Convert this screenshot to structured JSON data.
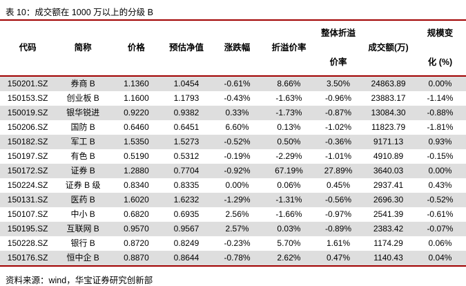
{
  "title": "表 10：成交额在 1000 万以上的分级 B",
  "table": {
    "columns": [
      {
        "label": "代码",
        "lines": [
          "代码"
        ]
      },
      {
        "label": "简称",
        "lines": [
          "简称"
        ]
      },
      {
        "label": "价格",
        "lines": [
          "价格"
        ]
      },
      {
        "label": "预估净值",
        "lines": [
          "预估净值"
        ]
      },
      {
        "label": "涨跌幅",
        "lines": [
          "涨跌幅"
        ]
      },
      {
        "label": "折溢价率",
        "lines": [
          "折溢价率"
        ]
      },
      {
        "label": "整体折溢价率",
        "lines": [
          "整体折溢",
          "价率"
        ]
      },
      {
        "label": "成交额(万)",
        "lines": [
          "成交额(万)"
        ]
      },
      {
        "label": "规模变化 (%)",
        "lines": [
          "规模变",
          "化 (%)"
        ]
      }
    ],
    "rows": [
      [
        "150201.SZ",
        "券商 B",
        "1.1360",
        "1.0454",
        "-0.61%",
        "8.66%",
        "3.50%",
        "24863.89",
        "0.00%"
      ],
      [
        "150153.SZ",
        "创业板 B",
        "1.1600",
        "1.1793",
        "-0.43%",
        "-1.63%",
        "-0.96%",
        "23883.17",
        "-1.14%"
      ],
      [
        "150019.SZ",
        "银华锐进",
        "0.9220",
        "0.9382",
        "0.33%",
        "-1.73%",
        "-0.87%",
        "13084.30",
        "-0.88%"
      ],
      [
        "150206.SZ",
        "国防 B",
        "0.6460",
        "0.6451",
        "6.60%",
        "0.13%",
        "-1.02%",
        "11823.79",
        "-1.81%"
      ],
      [
        "150182.SZ",
        "军工 B",
        "1.5350",
        "1.5273",
        "-0.52%",
        "0.50%",
        "-0.36%",
        "9171.13",
        "0.93%"
      ],
      [
        "150197.SZ",
        "有色 B",
        "0.5190",
        "0.5312",
        "-0.19%",
        "-2.29%",
        "-1.01%",
        "4910.89",
        "-0.15%"
      ],
      [
        "150172.SZ",
        "证券 B",
        "1.2880",
        "0.7704",
        "-0.92%",
        "67.19%",
        "27.89%",
        "3640.03",
        "0.00%"
      ],
      [
        "150224.SZ",
        "证券 B 级",
        "0.8340",
        "0.8335",
        "0.00%",
        "0.06%",
        "0.45%",
        "2937.41",
        "0.43%"
      ],
      [
        "150131.SZ",
        "医药 B",
        "1.6020",
        "1.6232",
        "-1.29%",
        "-1.31%",
        "-0.56%",
        "2696.30",
        "-0.52%"
      ],
      [
        "150107.SZ",
        "中小 B",
        "0.6820",
        "0.6935",
        "2.56%",
        "-1.66%",
        "-0.97%",
        "2541.39",
        "-0.61%"
      ],
      [
        "150195.SZ",
        "互联网 B",
        "0.9570",
        "0.9567",
        "2.57%",
        "0.03%",
        "-0.89%",
        "2383.42",
        "-0.07%"
      ],
      [
        "150228.SZ",
        "银行 B",
        "0.8720",
        "0.8249",
        "-0.23%",
        "5.70%",
        "1.61%",
        "1174.29",
        "0.06%"
      ],
      [
        "150176.SZ",
        "恒中企 B",
        "0.8870",
        "0.8644",
        "-0.78%",
        "2.62%",
        "0.47%",
        "1140.43",
        "0.04%"
      ]
    ]
  },
  "footer": {
    "source_label": "资料来源：wind，华宝证券研究创新部"
  },
  "colors": {
    "accent_red": "#A00000",
    "stripe_gray": "#DEDEDE"
  }
}
